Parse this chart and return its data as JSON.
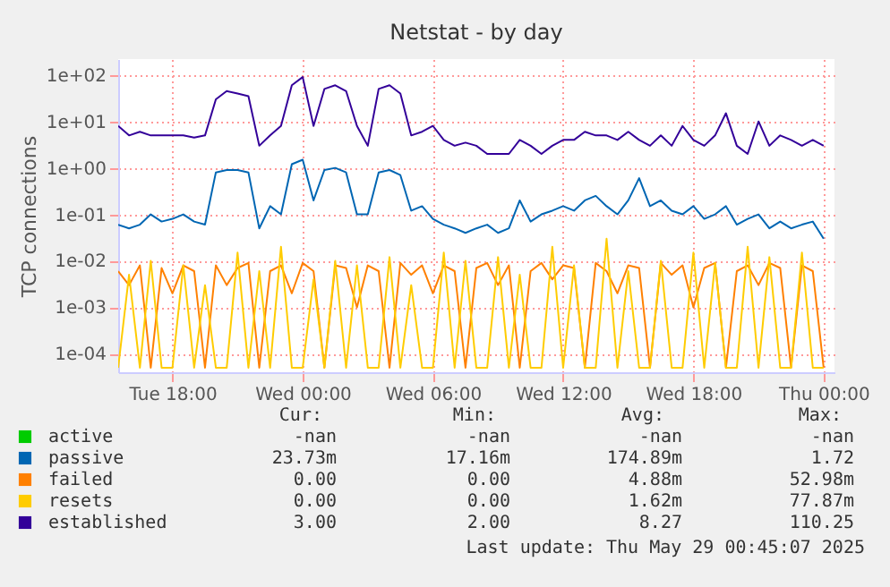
{
  "chart_data": {
    "type": "line",
    "title": "Netstat - by day",
    "ylabel": "TCP connections",
    "log": "y",
    "grid": true,
    "legend": "bottom",
    "line_style": "solid",
    "marker": "none",
    "x": [
      "2025-05-27T15:30",
      "2025-05-27T16:00",
      "2025-05-27T16:30",
      "2025-05-27T17:00",
      "2025-05-27T17:30",
      "2025-05-27T18:00",
      "2025-05-27T18:30",
      "2025-05-27T19:00",
      "2025-05-27T19:30",
      "2025-05-27T20:00",
      "2025-05-27T20:30",
      "2025-05-27T21:00",
      "2025-05-27T21:30",
      "2025-05-27T22:00",
      "2025-05-27T22:30",
      "2025-05-27T23:00",
      "2025-05-27T23:30",
      "2025-05-28T00:00",
      "2025-05-28T00:30",
      "2025-05-28T01:00",
      "2025-05-28T01:30",
      "2025-05-28T02:00",
      "2025-05-28T02:30",
      "2025-05-28T03:00",
      "2025-05-28T03:30",
      "2025-05-28T04:00",
      "2025-05-28T04:30",
      "2025-05-28T05:00",
      "2025-05-28T05:30",
      "2025-05-28T06:00",
      "2025-05-28T06:30",
      "2025-05-28T07:00",
      "2025-05-28T07:30",
      "2025-05-28T08:00",
      "2025-05-28T08:30",
      "2025-05-28T09:00",
      "2025-05-28T09:30",
      "2025-05-28T10:00",
      "2025-05-28T10:30",
      "2025-05-28T11:00",
      "2025-05-28T11:30",
      "2025-05-28T12:00",
      "2025-05-28T12:30",
      "2025-05-28T13:00",
      "2025-05-28T13:30",
      "2025-05-28T14:00",
      "2025-05-28T14:30",
      "2025-05-28T15:00",
      "2025-05-28T15:30",
      "2025-05-28T16:00",
      "2025-05-28T16:30",
      "2025-05-28T17:00",
      "2025-05-28T17:30",
      "2025-05-28T18:00",
      "2025-05-28T18:30",
      "2025-05-28T19:00",
      "2025-05-28T19:30",
      "2025-05-28T20:00",
      "2025-05-28T20:30",
      "2025-05-28T21:00",
      "2025-05-28T21:30",
      "2025-05-28T22:00",
      "2025-05-28T22:30",
      "2025-05-28T23:00",
      "2025-05-28T23:30",
      "2025-05-29T00:00"
    ],
    "xlim": [
      "2025-05-27T15:30",
      "2025-05-29T00:30"
    ],
    "xticks": [
      {
        "value": "2025-05-27T18:00",
        "label": "Tue 18:00"
      },
      {
        "value": "2025-05-28T00:00",
        "label": "Wed 00:00"
      },
      {
        "value": "2025-05-28T06:00",
        "label": "Wed 06:00"
      },
      {
        "value": "2025-05-28T12:00",
        "label": "Wed 12:00"
      },
      {
        "value": "2025-05-28T18:00",
        "label": "Wed 18:00"
      },
      {
        "value": "2025-05-29T00:00",
        "label": "Thu 00:00"
      }
    ],
    "ylim": [
      4e-05,
      220
    ],
    "yticks": [
      {
        "value": 0.0001,
        "label": "1e-04"
      },
      {
        "value": 0.001,
        "label": "1e-03"
      },
      {
        "value": 0.01,
        "label": "1e-02"
      },
      {
        "value": 0.1,
        "label": "1e-01"
      },
      {
        "value": 1,
        "label": "1e+00"
      },
      {
        "value": 10,
        "label": "1e+01"
      },
      {
        "value": 100,
        "label": "1e+02"
      }
    ],
    "series": [
      {
        "name": "active",
        "color": "#00cc00",
        "values": [
          null,
          null,
          null,
          null,
          null,
          null,
          null,
          null,
          null,
          null,
          null,
          null,
          null,
          null,
          null,
          null,
          null,
          null,
          null,
          null,
          null,
          null,
          null,
          null,
          null,
          null,
          null,
          null,
          null,
          null,
          null,
          null,
          null,
          null,
          null,
          null,
          null,
          null,
          null,
          null,
          null,
          null,
          null,
          null,
          null,
          null,
          null,
          null,
          null,
          null,
          null,
          null,
          null,
          null,
          null,
          null,
          null,
          null,
          null,
          null,
          null,
          null,
          null,
          null,
          null,
          null
        ]
      },
      {
        "name": "passive",
        "color": "#0066b3",
        "values": [
          0.06,
          0.05,
          0.06,
          0.1,
          0.07,
          0.08,
          0.1,
          0.07,
          0.06,
          0.8,
          0.9,
          0.9,
          0.8,
          0.05,
          0.15,
          0.1,
          1.2,
          1.5,
          0.2,
          0.9,
          1.0,
          0.8,
          0.1,
          0.1,
          0.8,
          0.9,
          0.7,
          0.12,
          0.15,
          0.08,
          0.06,
          0.05,
          0.04,
          0.05,
          0.06,
          0.04,
          0.05,
          0.2,
          0.07,
          0.1,
          0.12,
          0.15,
          0.12,
          0.2,
          0.25,
          0.15,
          0.1,
          0.2,
          0.6,
          0.15,
          0.2,
          0.12,
          0.1,
          0.15,
          0.08,
          0.1,
          0.15,
          0.06,
          0.08,
          0.1,
          0.05,
          0.07,
          0.05,
          0.06,
          0.07,
          0.03
        ]
      },
      {
        "name": "failed",
        "color": "#ff8000",
        "values": [
          0.006,
          0.003,
          0.008,
          5e-05,
          0.007,
          0.002,
          0.008,
          0.006,
          5e-05,
          0.008,
          0.003,
          0.007,
          0.009,
          5e-05,
          0.006,
          0.008,
          0.002,
          0.009,
          0.006,
          5e-05,
          0.008,
          0.007,
          0.001,
          0.008,
          0.006,
          5e-05,
          0.009,
          0.005,
          0.008,
          0.002,
          0.008,
          0.006,
          5e-05,
          0.007,
          0.009,
          0.003,
          0.008,
          5e-05,
          0.006,
          0.009,
          0.004,
          0.008,
          0.007,
          5e-05,
          0.009,
          0.006,
          0.002,
          0.008,
          0.007,
          5e-05,
          0.009,
          0.005,
          0.008,
          0.001,
          0.007,
          0.009,
          5e-05,
          0.006,
          0.008,
          0.003,
          0.009,
          0.007,
          5e-05,
          0.008,
          0.006,
          5e-05
        ]
      },
      {
        "name": "resets",
        "color": "#ffcc00",
        "values": [
          5e-05,
          0.005,
          5e-05,
          0.01,
          5e-05,
          5e-05,
          0.008,
          5e-05,
          0.003,
          5e-05,
          5e-05,
          0.015,
          5e-05,
          0.006,
          5e-05,
          0.02,
          5e-05,
          5e-05,
          0.004,
          5e-05,
          0.01,
          5e-05,
          0.008,
          5e-05,
          5e-05,
          0.012,
          5e-05,
          0.003,
          5e-05,
          5e-05,
          0.015,
          5e-05,
          0.01,
          5e-05,
          5e-05,
          0.012,
          5e-05,
          0.005,
          5e-05,
          5e-05,
          0.02,
          5e-05,
          0.008,
          5e-05,
          5e-05,
          0.03,
          5e-05,
          0.006,
          5e-05,
          5e-05,
          0.01,
          5e-05,
          5e-05,
          0.015,
          5e-05,
          0.009,
          5e-05,
          5e-05,
          0.02,
          5e-05,
          0.012,
          5e-05,
          5e-05,
          0.015,
          5e-05,
          5e-05
        ]
      },
      {
        "name": "established",
        "color": "#330099",
        "values": [
          8,
          5,
          6,
          5,
          5,
          5,
          5,
          4.5,
          5,
          30,
          45,
          40,
          35,
          3,
          5,
          8,
          60,
          90,
          8,
          50,
          60,
          45,
          8,
          3,
          50,
          60,
          40,
          5,
          6,
          8,
          4,
          3,
          3.5,
          3,
          2,
          2,
          2,
          4,
          3,
          2,
          3,
          4,
          4,
          6,
          5,
          5,
          4,
          6,
          4,
          3,
          5,
          3,
          8,
          4,
          3,
          5,
          15,
          3,
          2,
          10,
          3,
          5,
          4,
          3,
          4,
          3
        ]
      }
    ],
    "annotations": [
      "Cur:",
      "Min:",
      "Avg:",
      "Max:",
      "-nan",
      "-nan",
      "-nan",
      "-nan",
      "23.73m",
      "17.16m",
      "174.89m",
      "1.72",
      "0.00",
      "0.00",
      "4.88m",
      "52.98m",
      "0.00",
      "0.00",
      "1.62m",
      "77.87m",
      "3.00",
      "2.00",
      "8.27",
      "110.25",
      "Last update: Thu May 29 00:45:07 2025"
    ]
  }
}
